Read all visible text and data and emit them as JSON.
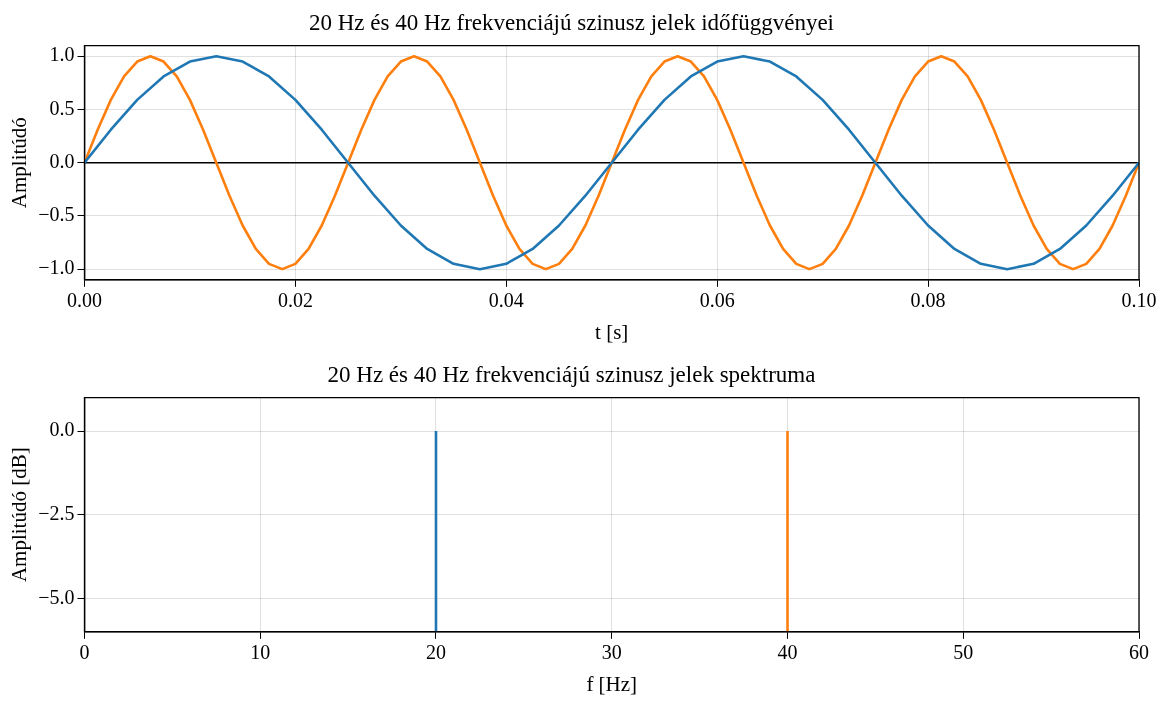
{
  "chart_data": [
    {
      "type": "line",
      "title": "20 Hz és 40 Hz frekvenciájú szinusz jelek időfüggvényei",
      "xlabel": "t [s]",
      "ylabel": "Amplitúdó",
      "xlim": [
        0,
        0.1
      ],
      "xticks": [
        {
          "value": 0,
          "label": "0.00"
        },
        {
          "value": 0.02,
          "label": "0.02"
        },
        {
          "value": 0.04,
          "label": "0.04"
        },
        {
          "value": 0.06,
          "label": "0.06"
        },
        {
          "value": 0.08,
          "label": "0.08"
        },
        {
          "value": 0.1,
          "label": "0.10"
        }
      ],
      "ylim": [
        -1.1,
        1.1
      ],
      "yticks": [
        {
          "value": -1,
          "label": "−1.0"
        },
        {
          "value": -0.5,
          "label": "−0.5"
        },
        {
          "value": 0,
          "label": "0.0"
        },
        {
          "value": 0.5,
          "label": "0.5"
        },
        {
          "value": 1,
          "label": "1.0"
        }
      ],
      "grid": true,
      "legend": false,
      "marker": "none",
      "line_style": "solid",
      "ref_lines": [
        {
          "axis": "y",
          "value": 0,
          "color": "#000000"
        }
      ],
      "series": [
        {
          "color": "#1f77b4",
          "x": [
            0,
            0.0025,
            0.005,
            0.0075,
            0.01,
            0.0125,
            0.015,
            0.0175,
            0.02,
            0.0225,
            0.025,
            0.0275,
            0.03,
            0.0325,
            0.035,
            0.0375,
            0.04,
            0.0425,
            0.045,
            0.0475,
            0.05,
            0.0525,
            0.055,
            0.0575,
            0.06,
            0.0625,
            0.065,
            0.0675,
            0.07,
            0.0725,
            0.075,
            0.0775,
            0.08,
            0.0825,
            0.085,
            0.0875,
            0.09,
            0.0925,
            0.095,
            0.0975,
            0.1
          ],
          "values": [
            0,
            0.31,
            0.59,
            0.81,
            0.95,
            1,
            0.95,
            0.81,
            0.59,
            0.31,
            0,
            -0.31,
            -0.59,
            -0.81,
            -0.95,
            -1,
            -0.95,
            -0.81,
            -0.59,
            -0.31,
            0,
            0.31,
            0.59,
            0.81,
            0.95,
            1,
            0.95,
            0.81,
            0.59,
            0.31,
            0,
            -0.31,
            -0.59,
            -0.81,
            -0.95,
            -1,
            -0.95,
            -0.81,
            -0.59,
            -0.31,
            0
          ]
        },
        {
          "color": "#ff7f0e",
          "x": [
            0,
            0.00125,
            0.0025,
            0.00375,
            0.005,
            0.00625,
            0.0075,
            0.00875,
            0.01,
            0.01125,
            0.0125,
            0.01375,
            0.015,
            0.01625,
            0.0175,
            0.01875,
            0.02,
            0.02125,
            0.0225,
            0.02375,
            0.025,
            0.02625,
            0.0275,
            0.02875,
            0.03,
            0.03125,
            0.0325,
            0.03375,
            0.035,
            0.03625,
            0.0375,
            0.03875,
            0.04,
            0.04125,
            0.0425,
            0.04375,
            0.045,
            0.04625,
            0.0475,
            0.04875,
            0.05,
            0.05125,
            0.0525,
            0.05375,
            0.055,
            0.05625,
            0.0575,
            0.05875,
            0.06,
            0.06125,
            0.0625,
            0.06375,
            0.065,
            0.06625,
            0.0675,
            0.06875,
            0.07,
            0.07125,
            0.0725,
            0.07375,
            0.075,
            0.07625,
            0.0775,
            0.07875,
            0.08,
            0.08125,
            0.0825,
            0.08375,
            0.085,
            0.08625,
            0.0875,
            0.08875,
            0.09,
            0.09125,
            0.0925,
            0.09375,
            0.095,
            0.09625,
            0.0975,
            0.09875,
            0.1
          ],
          "values": [
            0,
            0.31,
            0.59,
            0.81,
            0.95,
            1,
            0.95,
            0.81,
            0.59,
            0.31,
            0,
            -0.31,
            -0.59,
            -0.81,
            -0.95,
            -1,
            -0.95,
            -0.81,
            -0.59,
            -0.31,
            0,
            0.31,
            0.59,
            0.81,
            0.95,
            1,
            0.95,
            0.81,
            0.59,
            0.31,
            0,
            -0.31,
            -0.59,
            -0.81,
            -0.95,
            -1,
            -0.95,
            -0.81,
            -0.59,
            -0.31,
            0,
            0.31,
            0.59,
            0.81,
            0.95,
            1,
            0.95,
            0.81,
            0.59,
            0.31,
            0,
            -0.31,
            -0.59,
            -0.81,
            -0.95,
            -1,
            -0.95,
            -0.81,
            -0.59,
            -0.31,
            0,
            0.31,
            0.59,
            0.81,
            0.95,
            1,
            0.95,
            0.81,
            0.59,
            0.31,
            0,
            -0.31,
            -0.59,
            -0.81,
            -0.95,
            -1,
            -0.95,
            -0.81,
            -0.59,
            -0.31,
            0
          ]
        }
      ]
    },
    {
      "type": "line",
      "title": "20 Hz és 40 Hz frekvenciájú szinusz jelek spektruma",
      "xlabel": "f [Hz]",
      "ylabel": "Amplitúdó [dB]",
      "xlim": [
        0,
        60
      ],
      "xticks": [
        0,
        10,
        20,
        30,
        40,
        50,
        60
      ],
      "ylim": [
        -6,
        1
      ],
      "yticks": [
        {
          "value": -5,
          "label": "−5.0"
        },
        {
          "value": -2.5,
          "label": "−2.5"
        },
        {
          "value": 0,
          "label": "0.0"
        }
      ],
      "grid": true,
      "legend": false,
      "marker": "none",
      "line_style": "solid",
      "series": [
        {
          "color": "#1f77b4",
          "x": [
            20,
            20
          ],
          "values": [
            -6,
            0
          ]
        },
        {
          "color": "#ff7f0e",
          "x": [
            40,
            40
          ],
          "values": [
            -6,
            0
          ]
        }
      ]
    }
  ]
}
